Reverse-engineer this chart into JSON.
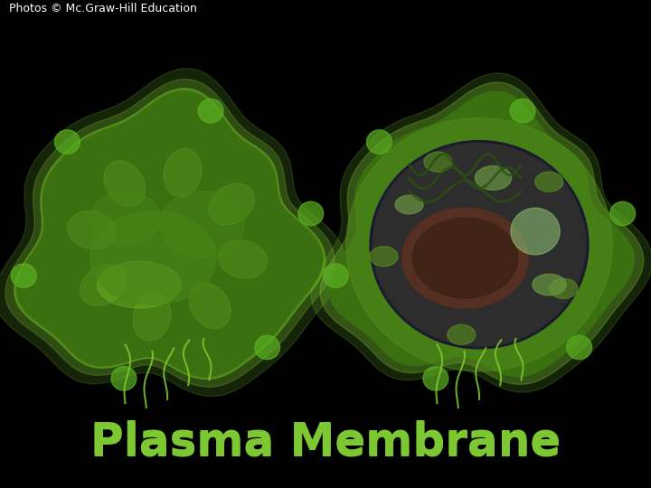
{
  "title": "Plasma Membrane",
  "title_color": "#7dc832",
  "title_fontsize": 36,
  "title_fontweight": "bold",
  "copyright_text": "Photos © Mc.Graw-Hill Education",
  "copyright_color": "#ffffff",
  "copyright_fontsize": 9,
  "background_color": "#000000",
  "fig_width": 7.2,
  "fig_height": 5.4,
  "dpi": 100
}
